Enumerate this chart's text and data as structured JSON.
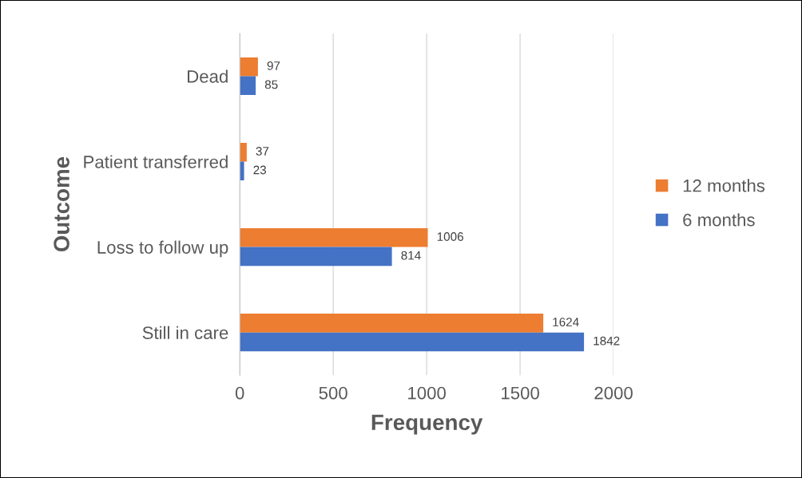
{
  "chart_data": {
    "type": "bar",
    "orientation": "horizontal",
    "xlabel": "Frequency",
    "ylabel": "Outcome",
    "categories": [
      "Dead",
      "Patient transferred",
      "Loss to follow up",
      "Still in care"
    ],
    "series": [
      {
        "name": "12 months",
        "color": "#ed7d31",
        "values": [
          97,
          37,
          1006,
          1624
        ]
      },
      {
        "name": "6 months",
        "color": "#4472c4",
        "values": [
          85,
          23,
          814,
          1842
        ]
      }
    ],
    "xlim": [
      0,
      2000
    ],
    "xticks": [
      0,
      500,
      1000,
      1500,
      2000
    ],
    "grid": "x",
    "legend": "right",
    "data_labels": true
  }
}
